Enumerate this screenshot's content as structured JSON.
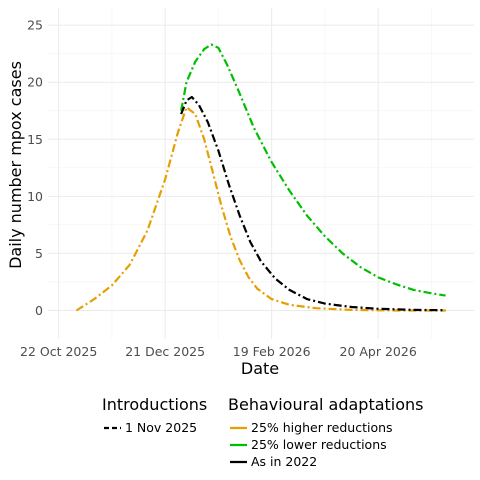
{
  "chart_data": {
    "type": "line",
    "xlabel": "Date",
    "ylabel": "Daily number mpox cases",
    "x_ticks": [
      "22 Oct 2025",
      "21 Dec 2025",
      "19 Feb 2026",
      "20 Apr 2026"
    ],
    "y_ticks": [
      0,
      5,
      10,
      15,
      20,
      25
    ],
    "xlim": [
      "2025-10-16",
      "2026-06-13"
    ],
    "ylim": [
      -2.5,
      26.5
    ],
    "grid": true,
    "legend_position": "bottom",
    "legend": {
      "introductions": {
        "title": "Introductions",
        "items": [
          {
            "label": "1 Nov 2025",
            "line": "dashed",
            "color": "#000000"
          }
        ]
      },
      "adaptations": {
        "title": "Behavioural adaptations",
        "items": [
          {
            "label": "25% higher reductions",
            "color": "#e69f00"
          },
          {
            "label": "25% lower reductions",
            "color": "#00bf00"
          },
          {
            "label": "As in 2022",
            "color": "#000000"
          }
        ]
      }
    },
    "series": [
      {
        "name": "25% higher reductions",
        "color": "#e69f00",
        "linetype": "dotdash",
        "points": [
          [
            "2025-11-01",
            0.0
          ],
          [
            "2025-11-11",
            1.0
          ],
          [
            "2025-11-21",
            2.2
          ],
          [
            "2025-12-01",
            4.0
          ],
          [
            "2025-12-11",
            7.0
          ],
          [
            "2025-12-21",
            11.5
          ],
          [
            "2025-12-28",
            15.5
          ],
          [
            "2026-01-02",
            17.8
          ],
          [
            "2026-01-07",
            17.2
          ],
          [
            "2026-01-12",
            15.0
          ],
          [
            "2026-01-17",
            12.0
          ],
          [
            "2026-01-22",
            9.0
          ],
          [
            "2026-01-27",
            6.4
          ],
          [
            "2026-02-01",
            4.4
          ],
          [
            "2026-02-06",
            2.9
          ],
          [
            "2026-02-11",
            1.9
          ],
          [
            "2026-02-19",
            1.0
          ],
          [
            "2026-03-01",
            0.5
          ],
          [
            "2026-03-16",
            0.2
          ],
          [
            "2026-04-05",
            0.05
          ],
          [
            "2026-05-01",
            0.0
          ],
          [
            "2026-05-28",
            0.0
          ]
        ]
      },
      {
        "name": "25% lower reductions",
        "color": "#00bf00",
        "linetype": "dotdash",
        "points": [
          [
            "2025-12-30",
            17.5
          ],
          [
            "2026-01-02",
            20.0
          ],
          [
            "2026-01-07",
            21.8
          ],
          [
            "2026-01-12",
            22.9
          ],
          [
            "2026-01-16",
            23.3
          ],
          [
            "2026-01-20",
            23.0
          ],
          [
            "2026-01-25",
            21.5
          ],
          [
            "2026-02-01",
            19.0
          ],
          [
            "2026-02-09",
            16.0
          ],
          [
            "2026-02-19",
            13.0
          ],
          [
            "2026-03-01",
            10.5
          ],
          [
            "2026-03-11",
            8.3
          ],
          [
            "2026-03-21",
            6.5
          ],
          [
            "2026-03-31",
            5.0
          ],
          [
            "2026-04-10",
            3.8
          ],
          [
            "2026-04-20",
            2.9
          ],
          [
            "2026-04-30",
            2.3
          ],
          [
            "2026-05-10",
            1.8
          ],
          [
            "2026-05-20",
            1.5
          ],
          [
            "2026-05-28",
            1.3
          ]
        ]
      },
      {
        "name": "As in 2022",
        "color": "#000000",
        "linetype": "dotdash",
        "points": [
          [
            "2025-12-30",
            17.2
          ],
          [
            "2026-01-02",
            18.4
          ],
          [
            "2026-01-05",
            18.7
          ],
          [
            "2026-01-09",
            18.0
          ],
          [
            "2026-01-14",
            16.5
          ],
          [
            "2026-01-20",
            14.0
          ],
          [
            "2026-01-26",
            11.0
          ],
          [
            "2026-02-01",
            8.3
          ],
          [
            "2026-02-07",
            6.0
          ],
          [
            "2026-02-13",
            4.3
          ],
          [
            "2026-02-21",
            2.8
          ],
          [
            "2026-03-01",
            1.8
          ],
          [
            "2026-03-11",
            1.0
          ],
          [
            "2026-03-21",
            0.6
          ],
          [
            "2026-04-05",
            0.3
          ],
          [
            "2026-04-20",
            0.15
          ],
          [
            "2026-05-10",
            0.05
          ],
          [
            "2026-05-28",
            0.02
          ]
        ]
      }
    ]
  }
}
